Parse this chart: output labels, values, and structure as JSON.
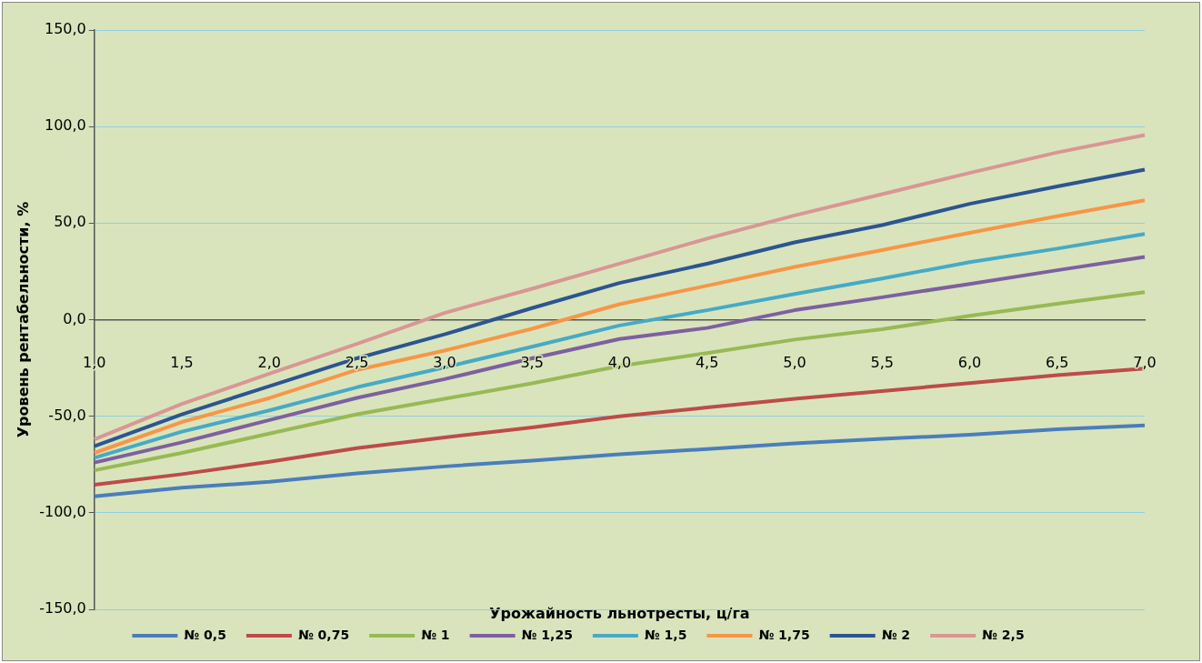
{
  "chart_data": {
    "type": "line",
    "xlabel": "Урожайность льнотресты, ц/га",
    "ylabel": "Уровень рентабельности, %",
    "categories": [
      "1,0",
      "1,5",
      "2,0",
      "2,5",
      "3,0",
      "3,5",
      "4,0",
      "4,5",
      "5,0",
      "5,5",
      "6,0",
      "6,5",
      "7,0"
    ],
    "ylim": [
      -150,
      150
    ],
    "yticks": [
      {
        "value": -150,
        "label": "-150,0"
      },
      {
        "value": -100,
        "label": "-100,0"
      },
      {
        "value": -50,
        "label": "-50,0"
      },
      {
        "value": 0,
        "label": "0,0"
      },
      {
        "value": 50,
        "label": "50,0"
      },
      {
        "value": 100,
        "label": "100,0"
      },
      {
        "value": 150,
        "label": "150,0"
      }
    ],
    "grid": "y",
    "legend": "bottom",
    "marker": "none",
    "line_style": "solid",
    "series": [
      {
        "name": "№ 0,5",
        "color": "#4a7ebb",
        "values": [
          -91.5,
          -87,
          -84,
          -79.6,
          -76,
          -73,
          -69.7,
          -67,
          -64,
          -61.7,
          -59.6,
          -56.7,
          -54.7
        ]
      },
      {
        "name": "№ 0,75",
        "color": "#be4b48",
        "values": [
          -85.5,
          -80,
          -73.6,
          -66.5,
          -61,
          -55.8,
          -50,
          -45.5,
          -41,
          -37,
          -32.8,
          -28.7,
          -25.3
        ]
      },
      {
        "name": "№ 1",
        "color": "#98b954",
        "values": [
          -78,
          -69,
          -59,
          -49,
          -41,
          -33,
          -24,
          -17.3,
          -10.3,
          -4.9,
          2,
          8.2,
          14.2
        ]
      },
      {
        "name": "№ 1,25",
        "color": "#7d60a0",
        "values": [
          -74,
          -63.5,
          -52,
          -40.5,
          -30.8,
          -20,
          -10,
          -4.3,
          4.9,
          11.6,
          18.5,
          25.6,
          32.5
        ]
      },
      {
        "name": "№ 1,5",
        "color": "#46aac5",
        "values": [
          -71.5,
          -58,
          -47,
          -35,
          -24.7,
          -14,
          -3,
          4.9,
          13.3,
          21.3,
          29.8,
          36.8,
          44.4
        ]
      },
      {
        "name": "№ 1,75",
        "color": "#f79646",
        "values": [
          -69,
          -53,
          -40.6,
          -26,
          -16,
          -4.7,
          8,
          17.6,
          27.3,
          36,
          45,
          53.6,
          61.8
        ]
      },
      {
        "name": "№ 2",
        "color": "#2c5590",
        "values": [
          -65.5,
          -49,
          -34.4,
          -20,
          -7.6,
          6,
          19,
          29,
          40,
          49,
          60,
          69,
          77.7
        ]
      },
      {
        "name": "№ 2,5",
        "color": "#d99694",
        "values": [
          -62,
          -43.6,
          -28,
          -12.5,
          3.5,
          16,
          29,
          42,
          54,
          65,
          76,
          86.6,
          95.6
        ]
      }
    ]
  }
}
